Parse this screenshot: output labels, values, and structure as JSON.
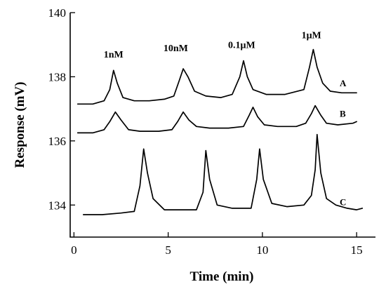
{
  "chart_data": {
    "type": "line",
    "title": "",
    "xlabel": "Time (min)",
    "ylabel": "Response (mV)",
    "xlim": [
      -0.2,
      16
    ],
    "ylim": [
      133.0,
      140.0
    ],
    "xticks": [
      0,
      5,
      10,
      15
    ],
    "yticks": [
      134,
      136,
      138,
      140
    ],
    "x_tick_labels": [
      "0",
      "5",
      "10",
      "15"
    ],
    "y_tick_labels": [
      "134",
      "136",
      "138",
      "140"
    ],
    "annotations": [
      {
        "text": "1nM",
        "x": 2.1,
        "y": 138.6
      },
      {
        "text": "10nM",
        "x": 5.4,
        "y": 138.8
      },
      {
        "text": "0.1μM",
        "x": 8.9,
        "y": 138.9
      },
      {
        "text": "1μM",
        "x": 12.6,
        "y": 139.2
      }
    ],
    "series": [
      {
        "name": "A",
        "label_pos": {
          "x": 14.1,
          "y": 137.7
        },
        "points": [
          [
            0.2,
            137.15
          ],
          [
            1.0,
            137.15
          ],
          [
            1.6,
            137.25
          ],
          [
            1.9,
            137.6
          ],
          [
            2.1,
            138.2
          ],
          [
            2.3,
            137.8
          ],
          [
            2.6,
            137.35
          ],
          [
            3.2,
            137.25
          ],
          [
            4.0,
            137.25
          ],
          [
            4.8,
            137.3
          ],
          [
            5.3,
            137.4
          ],
          [
            5.6,
            137.9
          ],
          [
            5.8,
            138.25
          ],
          [
            6.05,
            138.0
          ],
          [
            6.4,
            137.55
          ],
          [
            7.0,
            137.4
          ],
          [
            7.8,
            137.35
          ],
          [
            8.4,
            137.45
          ],
          [
            8.8,
            138.0
          ],
          [
            9.0,
            138.5
          ],
          [
            9.2,
            138.0
          ],
          [
            9.5,
            137.6
          ],
          [
            10.2,
            137.45
          ],
          [
            11.2,
            137.45
          ],
          [
            12.2,
            137.6
          ],
          [
            12.5,
            138.3
          ],
          [
            12.7,
            138.85
          ],
          [
            12.9,
            138.3
          ],
          [
            13.2,
            137.8
          ],
          [
            13.6,
            137.55
          ],
          [
            14.2,
            137.5
          ],
          [
            15.0,
            137.5
          ]
        ]
      },
      {
        "name": "B",
        "label_pos": {
          "x": 14.1,
          "y": 136.75
        },
        "points": [
          [
            0.2,
            136.25
          ],
          [
            1.0,
            136.25
          ],
          [
            1.6,
            136.35
          ],
          [
            1.9,
            136.6
          ],
          [
            2.2,
            136.9
          ],
          [
            2.5,
            136.65
          ],
          [
            2.9,
            136.35
          ],
          [
            3.5,
            136.3
          ],
          [
            4.5,
            136.3
          ],
          [
            5.2,
            136.35
          ],
          [
            5.5,
            136.6
          ],
          [
            5.8,
            136.9
          ],
          [
            6.1,
            136.65
          ],
          [
            6.5,
            136.45
          ],
          [
            7.2,
            136.4
          ],
          [
            8.2,
            136.4
          ],
          [
            9.0,
            136.45
          ],
          [
            9.3,
            136.8
          ],
          [
            9.5,
            137.05
          ],
          [
            9.75,
            136.75
          ],
          [
            10.1,
            136.5
          ],
          [
            10.8,
            136.45
          ],
          [
            11.8,
            136.45
          ],
          [
            12.3,
            136.55
          ],
          [
            12.6,
            136.85
          ],
          [
            12.8,
            137.1
          ],
          [
            13.1,
            136.8
          ],
          [
            13.4,
            136.55
          ],
          [
            14.0,
            136.5
          ],
          [
            14.8,
            136.55
          ],
          [
            15.0,
            136.6
          ]
        ]
      },
      {
        "name": "C",
        "label_pos": {
          "x": 14.1,
          "y": 134.0
        },
        "points": [
          [
            0.5,
            133.7
          ],
          [
            1.5,
            133.7
          ],
          [
            2.5,
            133.75
          ],
          [
            3.2,
            133.8
          ],
          [
            3.5,
            134.6
          ],
          [
            3.7,
            135.75
          ],
          [
            3.9,
            135.0
          ],
          [
            4.2,
            134.2
          ],
          [
            4.8,
            133.85
          ],
          [
            5.5,
            133.85
          ],
          [
            6.5,
            133.85
          ],
          [
            6.85,
            134.4
          ],
          [
            7.0,
            135.7
          ],
          [
            7.2,
            134.8
          ],
          [
            7.6,
            134.0
          ],
          [
            8.4,
            133.9
          ],
          [
            9.4,
            133.9
          ],
          [
            9.7,
            134.8
          ],
          [
            9.85,
            135.75
          ],
          [
            10.05,
            134.8
          ],
          [
            10.5,
            134.05
          ],
          [
            11.3,
            133.95
          ],
          [
            12.2,
            134.0
          ],
          [
            12.6,
            134.3
          ],
          [
            12.8,
            135.1
          ],
          [
            12.9,
            136.2
          ],
          [
            13.1,
            135.0
          ],
          [
            13.4,
            134.2
          ],
          [
            13.9,
            134.0
          ],
          [
            14.5,
            133.9
          ],
          [
            15.0,
            133.85
          ],
          [
            15.3,
            133.9
          ]
        ]
      }
    ]
  }
}
